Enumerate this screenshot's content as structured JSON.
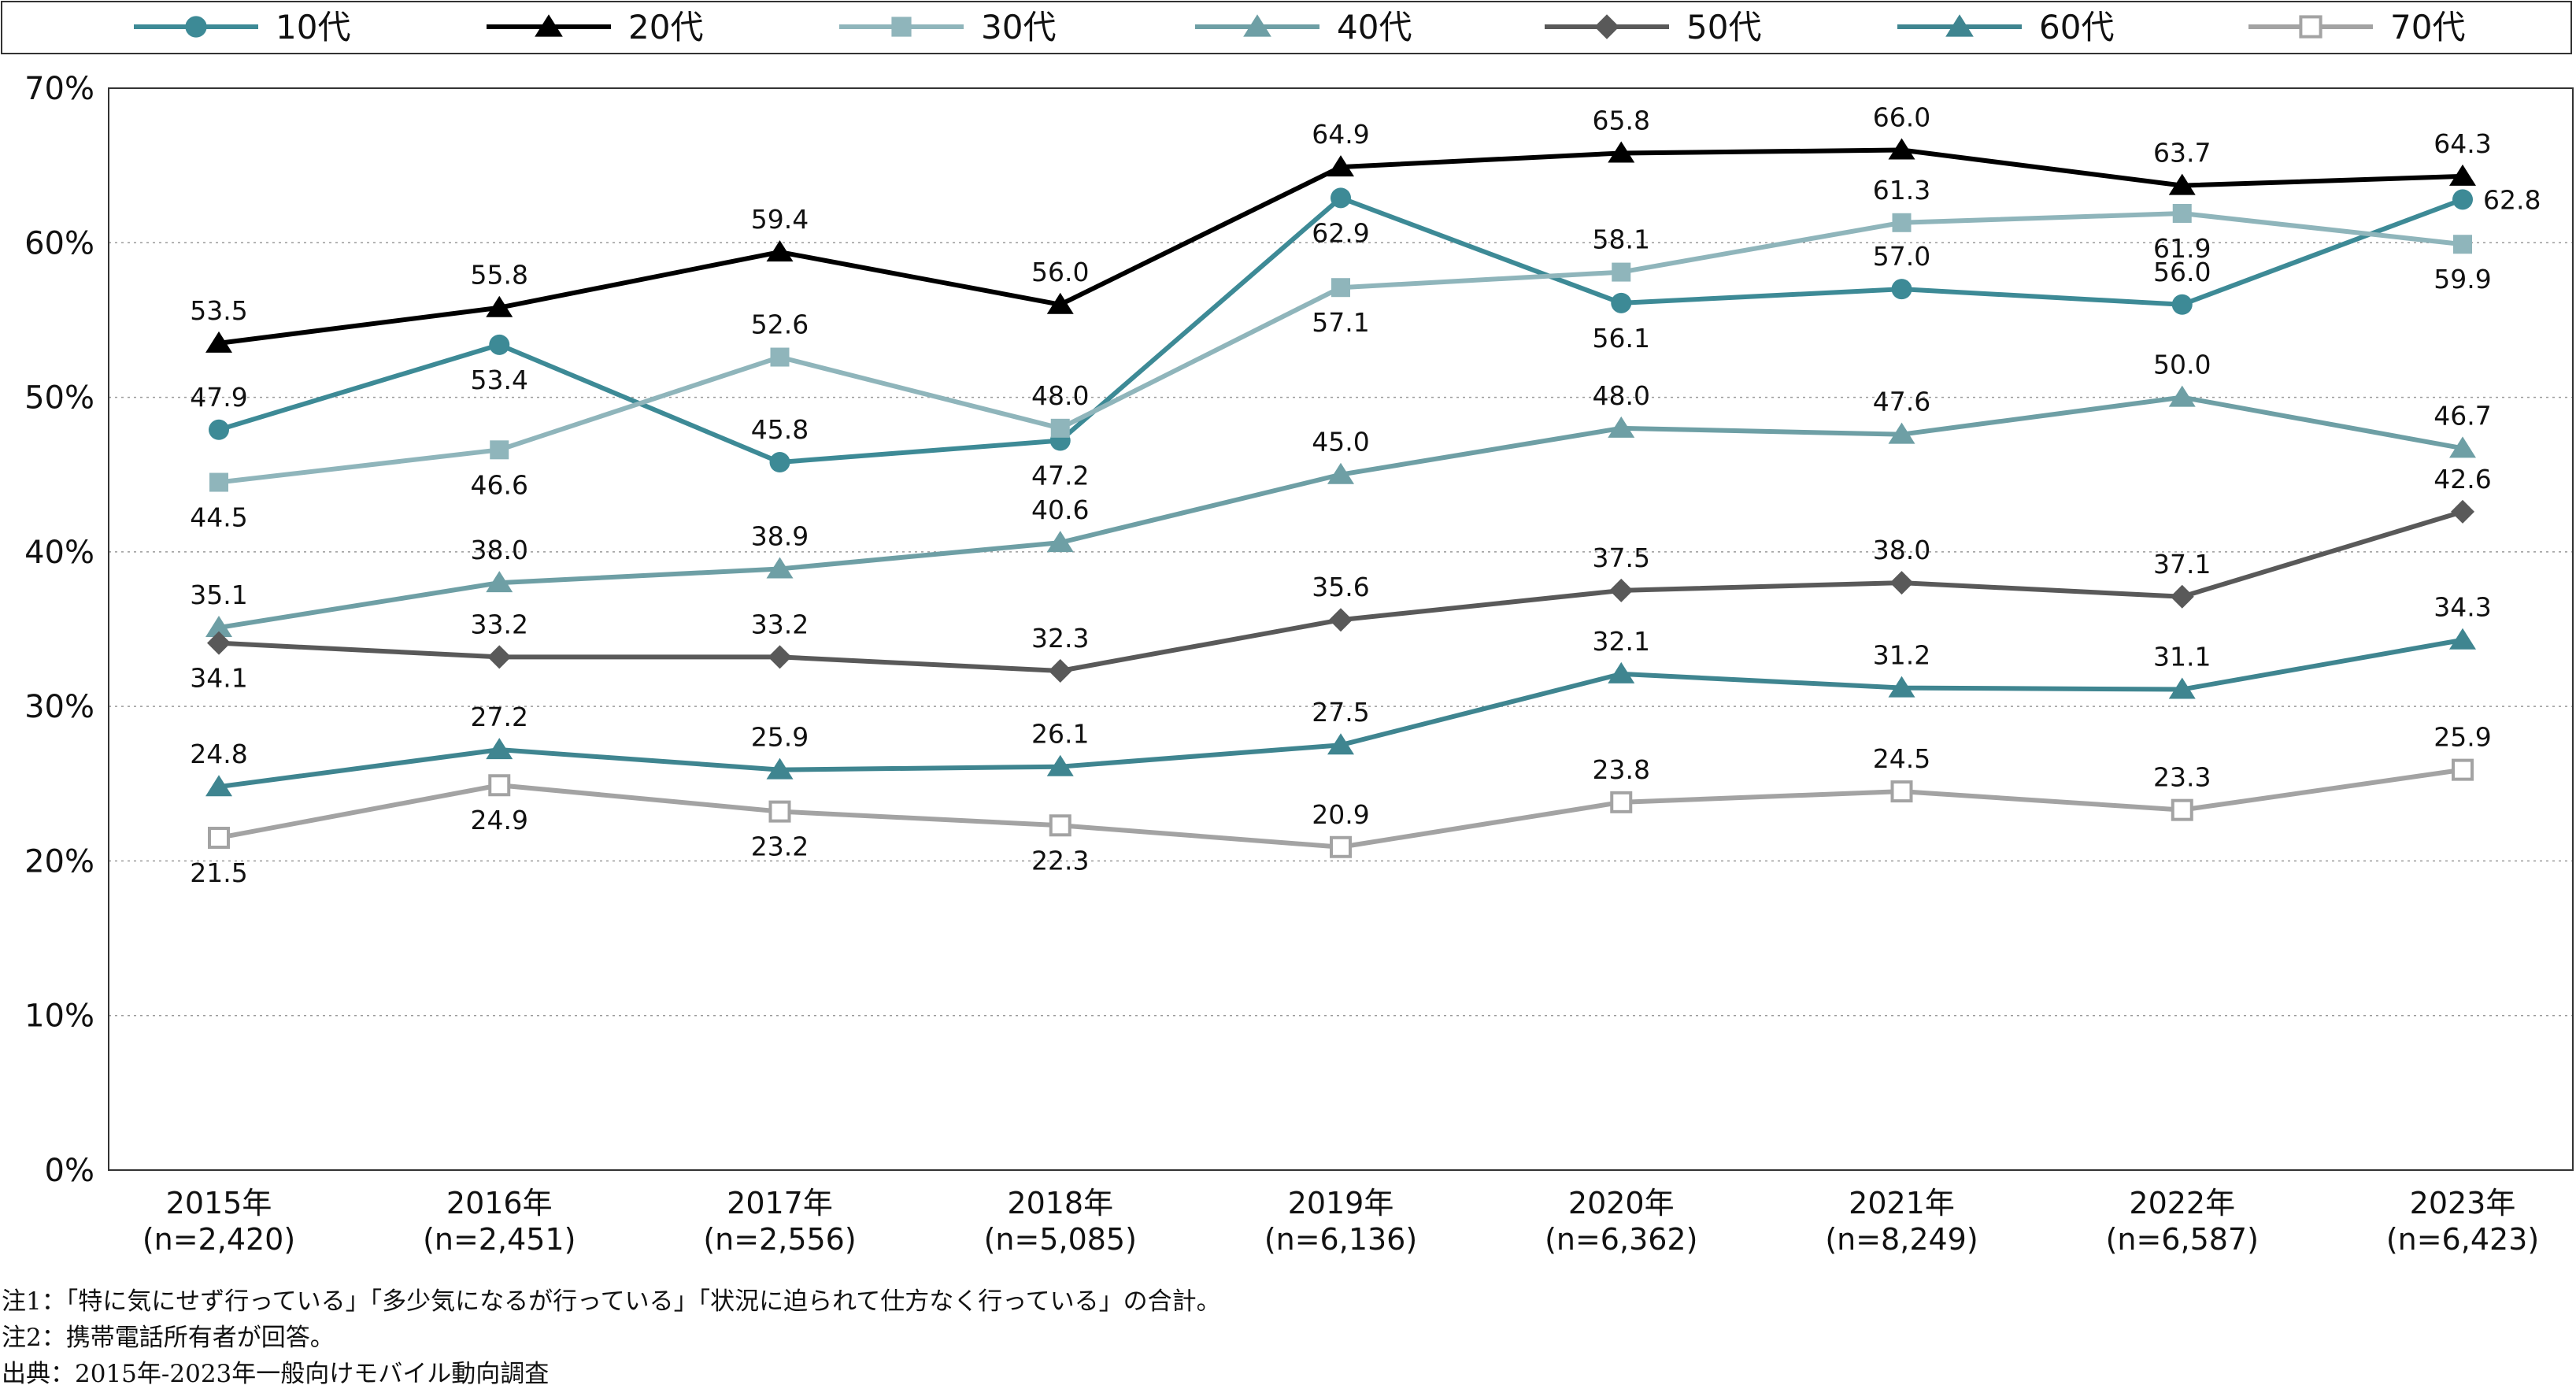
{
  "chart_data": {
    "type": "line",
    "title": "",
    "xlabel": "",
    "ylabel": "",
    "categories": [
      "2015年",
      "2016年",
      "2017年",
      "2018年",
      "2019年",
      "2020年",
      "2021年",
      "2022年",
      "2023年"
    ],
    "sample_sizes": [
      "(n=2,420)",
      "(n=2,451)",
      "(n=2,556)",
      "(n=5,085)",
      "(n=6,136)",
      "(n=6,362)",
      "(n=8,249)",
      "(n=6,587)",
      "(n=6,423)"
    ],
    "ylim": [
      0,
      70
    ],
    "yticks": [
      0,
      10,
      20,
      30,
      40,
      50,
      60,
      70
    ],
    "ytick_labels": [
      "0%",
      "10%",
      "20%",
      "30%",
      "40%",
      "50%",
      "60%",
      "70%"
    ],
    "grid": "horizontal dotted",
    "legend_position": "top",
    "series": [
      {
        "name": "10代",
        "values": [
          47.9,
          53.4,
          45.8,
          47.2,
          62.9,
          56.1,
          57.0,
          56.0,
          62.8
        ],
        "color": "#3d8a96",
        "marker": "circle",
        "label_pos": [
          "above",
          "below",
          "above",
          "below",
          "below",
          "below",
          "above",
          "above",
          "right"
        ]
      },
      {
        "name": "20代",
        "values": [
          53.5,
          55.8,
          59.4,
          56.0,
          64.9,
          65.8,
          66.0,
          63.7,
          64.3
        ],
        "color": "#000000",
        "marker": "triangle",
        "label_pos": [
          "above",
          "above",
          "above",
          "above",
          "above",
          "above",
          "above",
          "above",
          "above"
        ]
      },
      {
        "name": "30代",
        "values": [
          44.5,
          46.6,
          52.6,
          48.0,
          57.1,
          58.1,
          61.3,
          61.9,
          59.9
        ],
        "color": "#8fb5bb",
        "marker": "square",
        "label_pos": [
          "below",
          "below",
          "above",
          "above",
          "below",
          "above",
          "above",
          "below",
          "below"
        ]
      },
      {
        "name": "40代",
        "values": [
          35.1,
          38.0,
          38.9,
          40.6,
          45.0,
          48.0,
          47.6,
          50.0,
          46.7
        ],
        "color": "#6e9fa5",
        "marker": "triangle",
        "label_pos": [
          "above",
          "above",
          "above",
          "above",
          "above",
          "above",
          "above",
          "above",
          "above"
        ]
      },
      {
        "name": "50代",
        "values": [
          34.1,
          33.2,
          33.2,
          32.3,
          35.6,
          37.5,
          38.0,
          37.1,
          42.6
        ],
        "color": "#595959",
        "marker": "diamond",
        "label_pos": [
          "below",
          "above",
          "above",
          "above",
          "above",
          "above",
          "above",
          "above",
          "above"
        ]
      },
      {
        "name": "60代",
        "values": [
          24.8,
          27.2,
          25.9,
          26.1,
          27.5,
          32.1,
          31.2,
          31.1,
          34.3
        ],
        "color": "#3f8590",
        "marker": "triangle",
        "label_pos": [
          "above",
          "above",
          "above",
          "above",
          "above",
          "above",
          "above",
          "above",
          "above"
        ]
      },
      {
        "name": "70代",
        "values": [
          21.5,
          24.9,
          23.2,
          22.3,
          20.9,
          23.8,
          24.5,
          23.3,
          25.9
        ],
        "color": "#a3a3a3",
        "marker": "square-open",
        "label_pos": [
          "below",
          "below",
          "below",
          "below",
          "above",
          "above",
          "above",
          "above",
          "above"
        ]
      }
    ]
  },
  "notes": [
    "注1：「特に気にせず行っている」「多少気になるが行っている」「状況に迫られて仕方なく行っている」の合計。",
    "注2：携帯電話所有者が回答。",
    "出典：2015年-2023年一般向けモバイル動向調査"
  ]
}
